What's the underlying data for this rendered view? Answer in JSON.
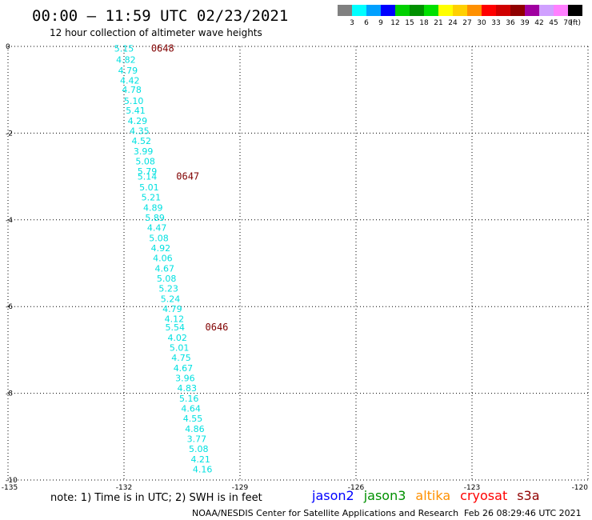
{
  "header": {
    "title": "00:00 – 11:59 UTC 02/23/2021",
    "subtitle": "12 hour collection of altimeter wave heights"
  },
  "colorbar": {
    "labels": [
      "3",
      "6",
      "9",
      "12",
      "15",
      "18",
      "21",
      "24",
      "27",
      "30",
      "33",
      "36",
      "39",
      "42",
      "45",
      "70"
    ],
    "unit": "(ft)",
    "colors": [
      "#808080",
      "#00ffff",
      "#00a0ff",
      "#0000ff",
      "#00d000",
      "#009000",
      "#00e000",
      "#ffff00",
      "#ffd000",
      "#ff9000",
      "#ff0000",
      "#d00000",
      "#900000",
      "#a000a0",
      "#d0a0ff",
      "#ff80ff",
      "#000000"
    ]
  },
  "chart_data": {
    "type": "scatter",
    "xlim": [
      -135,
      -120
    ],
    "ylim": [
      -10,
      0
    ],
    "x_ticks": [
      -135,
      -132,
      -129,
      -126,
      -123,
      -120
    ],
    "x_tick_labels": [
      "-135",
      "-132",
      "-129",
      "-126",
      "-123",
      "-120"
    ],
    "y_ticks": [
      0,
      -2,
      -4,
      -6,
      -8,
      -10
    ],
    "y_tick_labels": [
      "0",
      "-2",
      "-4",
      "-6",
      "-8",
      "-10"
    ],
    "grid": true,
    "series": [
      {
        "satellite": "s3a",
        "color": "#00e0e0",
        "points": [
          {
            "x": -132.0,
            "y": -0.05,
            "label": "5.15"
          },
          {
            "x": -131.95,
            "y": -0.3,
            "label": "4.82"
          },
          {
            "x": -131.9,
            "y": -0.55,
            "label": "4.79"
          },
          {
            "x": -131.85,
            "y": -0.78,
            "label": "4.42"
          },
          {
            "x": -131.8,
            "y": -1.0,
            "label": "4.78"
          },
          {
            "x": -131.75,
            "y": -1.25,
            "label": "5.10"
          },
          {
            "x": -131.7,
            "y": -1.48,
            "label": "5.41"
          },
          {
            "x": -131.65,
            "y": -1.72,
            "label": "4.29"
          },
          {
            "x": -131.6,
            "y": -1.95,
            "label": "4.35"
          },
          {
            "x": -131.55,
            "y": -2.18,
            "label": "4.52"
          },
          {
            "x": -131.5,
            "y": -2.42,
            "label": "3.99"
          },
          {
            "x": -131.45,
            "y": -2.65,
            "label": "5.08"
          },
          {
            "x": -131.4,
            "y": -2.88,
            "label": "5.79"
          },
          {
            "x": -131.4,
            "y": -3.0,
            "label": "5.14"
          },
          {
            "x": -131.35,
            "y": -3.25,
            "label": "5.01"
          },
          {
            "x": -131.3,
            "y": -3.48,
            "label": "5.21"
          },
          {
            "x": -131.25,
            "y": -3.72,
            "label": "4.89"
          },
          {
            "x": -131.2,
            "y": -3.95,
            "label": "5.89"
          },
          {
            "x": -131.15,
            "y": -4.18,
            "label": "4.47"
          },
          {
            "x": -131.1,
            "y": -4.42,
            "label": "5.08"
          },
          {
            "x": -131.05,
            "y": -4.65,
            "label": "4.92"
          },
          {
            "x": -131.0,
            "y": -4.88,
            "label": "4.06"
          },
          {
            "x": -130.95,
            "y": -5.12,
            "label": "4.67"
          },
          {
            "x": -130.9,
            "y": -5.35,
            "label": "5.08"
          },
          {
            "x": -130.85,
            "y": -5.58,
            "label": "5.23"
          },
          {
            "x": -130.8,
            "y": -5.82,
            "label": "5.24"
          },
          {
            "x": -130.75,
            "y": -6.05,
            "label": "4.79"
          },
          {
            "x": -130.7,
            "y": -6.28,
            "label": "4.12"
          },
          {
            "x": -130.68,
            "y": -6.48,
            "label": "5.54"
          },
          {
            "x": -130.62,
            "y": -6.72,
            "label": "4.02"
          },
          {
            "x": -130.57,
            "y": -6.95,
            "label": "5.01"
          },
          {
            "x": -130.52,
            "y": -7.18,
            "label": "4.75"
          },
          {
            "x": -130.47,
            "y": -7.42,
            "label": "4.67"
          },
          {
            "x": -130.42,
            "y": -7.65,
            "label": "3.96"
          },
          {
            "x": -130.37,
            "y": -7.88,
            "label": "4.83"
          },
          {
            "x": -130.32,
            "y": -8.12,
            "label": "5.16"
          },
          {
            "x": -130.27,
            "y": -8.35,
            "label": "4.64"
          },
          {
            "x": -130.22,
            "y": -8.58,
            "label": "4.55"
          },
          {
            "x": -130.17,
            "y": -8.82,
            "label": "4.86"
          },
          {
            "x": -130.12,
            "y": -9.05,
            "label": "3.77"
          },
          {
            "x": -130.07,
            "y": -9.28,
            "label": "5.08"
          },
          {
            "x": -130.02,
            "y": -9.52,
            "label": "4.21"
          },
          {
            "x": -129.97,
            "y": -9.75,
            "label": "4.16"
          }
        ]
      }
    ],
    "time_labels": [
      {
        "x": -131.3,
        "y": -0.05,
        "label": "0648"
      },
      {
        "x": -130.65,
        "y": -3.0,
        "label": "0647"
      },
      {
        "x": -129.9,
        "y": -6.48,
        "label": "0646"
      }
    ]
  },
  "footer": {
    "note": "note:  1) Time is in UTC;  2) SWH is in feet",
    "legend": [
      {
        "name": "jason2",
        "color": "#0000ff"
      },
      {
        "name": "jason3",
        "color": "#009000"
      },
      {
        "name": "altika",
        "color": "#ff9000"
      },
      {
        "name": "cryosat",
        "color": "#ff0000"
      },
      {
        "name": "s3a",
        "color": "#900000"
      }
    ],
    "credit": "NOAA/NESDIS Center for Satellite Applications and Research",
    "timestamp": "Feb 26 08:29:46 UTC 2021"
  }
}
